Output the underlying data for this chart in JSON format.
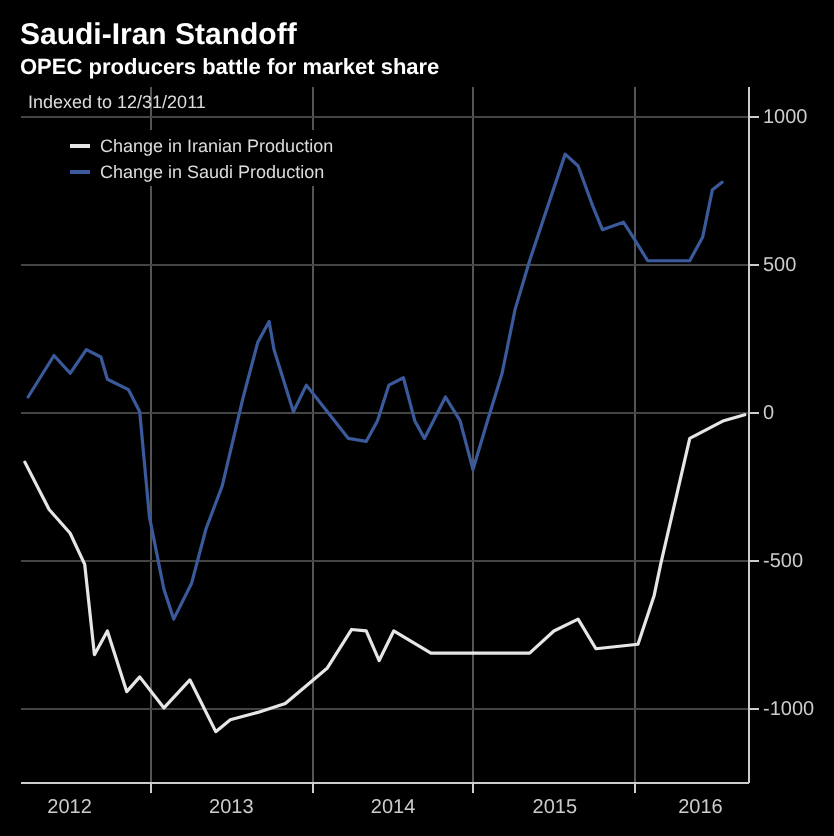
{
  "chart_data": {
    "type": "line",
    "title": "Saudi-Iran Standoff",
    "subtitle": "OPEC producers battle for market share",
    "annotations": [
      "Indexed to 12/31/2011"
    ],
    "series": [
      {
        "name": "Change in Iranian Production",
        "color": "#e6e6e6",
        "x": [
          2012.23,
          2012.38,
          2012.51,
          2012.6,
          2012.66,
          2012.74,
          2012.86,
          2012.94,
          2013.09,
          2013.25,
          2013.41,
          2013.5,
          2013.67,
          2013.84,
          2014.1,
          2014.25,
          2014.34,
          2014.42,
          2014.51,
          2014.74,
          2015.35,
          2015.5,
          2015.65,
          2015.76,
          2016.02,
          2016.12,
          2016.16,
          2016.34,
          2016.55,
          2016.68
        ],
        "values": [
          -170,
          -330,
          -410,
          -515,
          -820,
          -740,
          -945,
          -895,
          -1000,
          -905,
          -1080,
          -1040,
          -1015,
          -985,
          -865,
          -735,
          -740,
          -840,
          -740,
          -815,
          -815,
          -740,
          -700,
          -800,
          -785,
          -620,
          -515,
          -90,
          -30,
          -10
        ]
      },
      {
        "name": "Change in Saudi Production",
        "color": "#3a5a9c",
        "x": [
          2012.25,
          2012.41,
          2012.51,
          2012.61,
          2012.7,
          2012.74,
          2012.87,
          2012.94,
          2013.0,
          2013.09,
          2013.15,
          2013.26,
          2013.35,
          2013.45,
          2013.58,
          2013.67,
          2013.74,
          2013.77,
          2013.89,
          2013.97,
          2014.1,
          2014.23,
          2014.34,
          2014.41,
          2014.48,
          2014.57,
          2014.64,
          2014.7,
          2014.83,
          2014.92,
          2015.0,
          2015.09,
          2015.18,
          2015.26,
          2015.35,
          2015.57,
          2015.65,
          2015.74,
          2015.8,
          2015.93,
          2015.99,
          2016.08,
          2016.34,
          2016.42,
          2016.48,
          2016.54
        ],
        "values": [
          50,
          190,
          130,
          210,
          185,
          110,
          75,
          0,
          -355,
          -600,
          -700,
          -580,
          -395,
          -250,
          50,
          235,
          305,
          210,
          0,
          90,
          0,
          -90,
          -100,
          -30,
          90,
          115,
          -30,
          -90,
          50,
          -30,
          -195,
          -30,
          130,
          345,
          510,
          870,
          830,
          695,
          615,
          640,
          590,
          510,
          510,
          590,
          750,
          775
        ]
      }
    ],
    "xlim": [
      2012.2,
      2016.7
    ],
    "xticks": [
      {
        "value": 2012.5,
        "label": "2012"
      },
      {
        "value": 2013,
        "label": null
      },
      {
        "value": 2013.5,
        "label": "2013"
      },
      {
        "value": 2014,
        "label": null
      },
      {
        "value": 2014.5,
        "label": "2014"
      },
      {
        "value": 2015,
        "label": null
      },
      {
        "value": 2015.5,
        "label": "2015"
      },
      {
        "value": 2016,
        "label": null
      },
      {
        "value": 2016.4,
        "label": "2016"
      }
    ],
    "ylim": [
      -1250,
      1100
    ],
    "yticks": [
      -1000,
      -500,
      0,
      500,
      1000
    ],
    "grid": true,
    "legend": "top left"
  }
}
